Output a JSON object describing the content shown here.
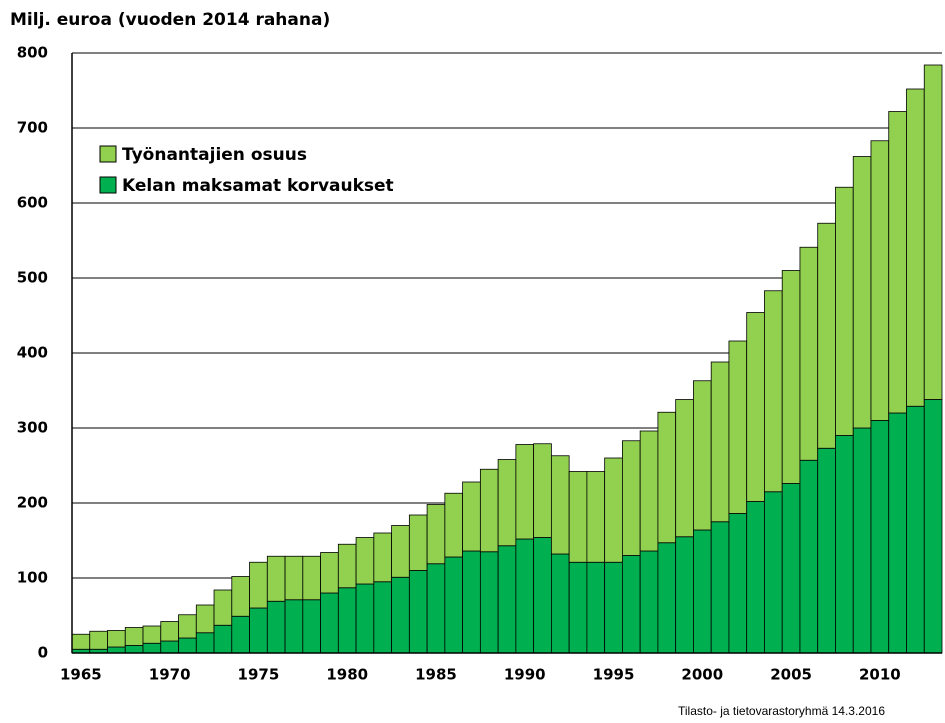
{
  "chart_data": {
    "type": "stacked_bar",
    "title": "Milj. euroa (vuoden 2014 rahana)",
    "source": "Tilasto- ja tietovarastoryhmä 14.3.2016",
    "categories": [
      "1965",
      null,
      null,
      null,
      null,
      "1970",
      null,
      null,
      null,
      null,
      "1975",
      null,
      null,
      null,
      null,
      "1980",
      null,
      null,
      null,
      null,
      "1985",
      null,
      null,
      null,
      null,
      "1990",
      null,
      null,
      null,
      null,
      "1995",
      null,
      null,
      null,
      null,
      "2000",
      null,
      null,
      null,
      null,
      "2005",
      null,
      null,
      null,
      null,
      "2010",
      null,
      null,
      null
    ],
    "series": [
      {
        "name": "Kelan maksamat korvaukset",
        "color": "#00b050",
        "values": [
          5,
          5,
          8,
          10,
          13,
          16,
          20,
          27,
          37,
          49,
          60,
          69,
          71,
          71,
          80,
          87,
          92,
          95,
          101,
          110,
          119,
          128,
          136,
          135,
          143,
          152,
          154,
          132,
          121,
          121,
          121,
          130,
          136,
          147,
          155,
          164,
          175,
          186,
          202,
          215,
          226,
          257,
          273,
          290,
          300,
          310,
          320,
          329,
          338
        ]
      },
      {
        "name": "Työnantajien osuus",
        "color": "#92d050",
        "values": [
          20,
          24,
          22,
          24,
          23,
          26,
          31,
          37,
          47,
          53,
          61,
          60,
          58,
          58,
          54,
          58,
          62,
          65,
          69,
          74,
          79,
          85,
          92,
          110,
          115,
          126,
          125,
          131,
          121,
          121,
          139,
          153,
          160,
          174,
          183,
          199,
          213,
          230,
          252,
          268,
          284,
          284,
          300,
          331,
          362,
          373,
          402,
          423,
          446
        ]
      }
    ],
    "ylim": [
      0,
      800
    ],
    "yticks": [
      0,
      100,
      200,
      300,
      400,
      500,
      600,
      700,
      800
    ],
    "grid": true,
    "legend": "upper left"
  }
}
